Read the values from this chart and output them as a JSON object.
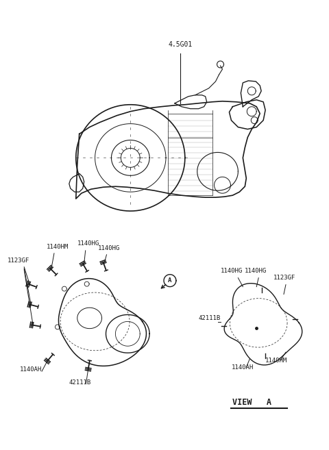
{
  "bg_color": "#ffffff",
  "line_color": "#1a1a1a",
  "fig_width": 4.8,
  "fig_height": 6.57,
  "dpi": 100,
  "main_label": "4.5G01",
  "lower_left_labels": {
    "top_left": "1140HM",
    "top_mid1": "1140HG",
    "top_mid2": "1140HG",
    "far_left": "1123GF",
    "bottom_left": "1140AH",
    "bottom_mid": "42111B"
  },
  "view_a_labels": {
    "top1": "1140HG",
    "top2": "1140HG",
    "top3": "1123GF",
    "left": "42111B",
    "bot1": "1140AH",
    "bot2": "1140HM"
  },
  "view_a_text": "VIEW   A"
}
